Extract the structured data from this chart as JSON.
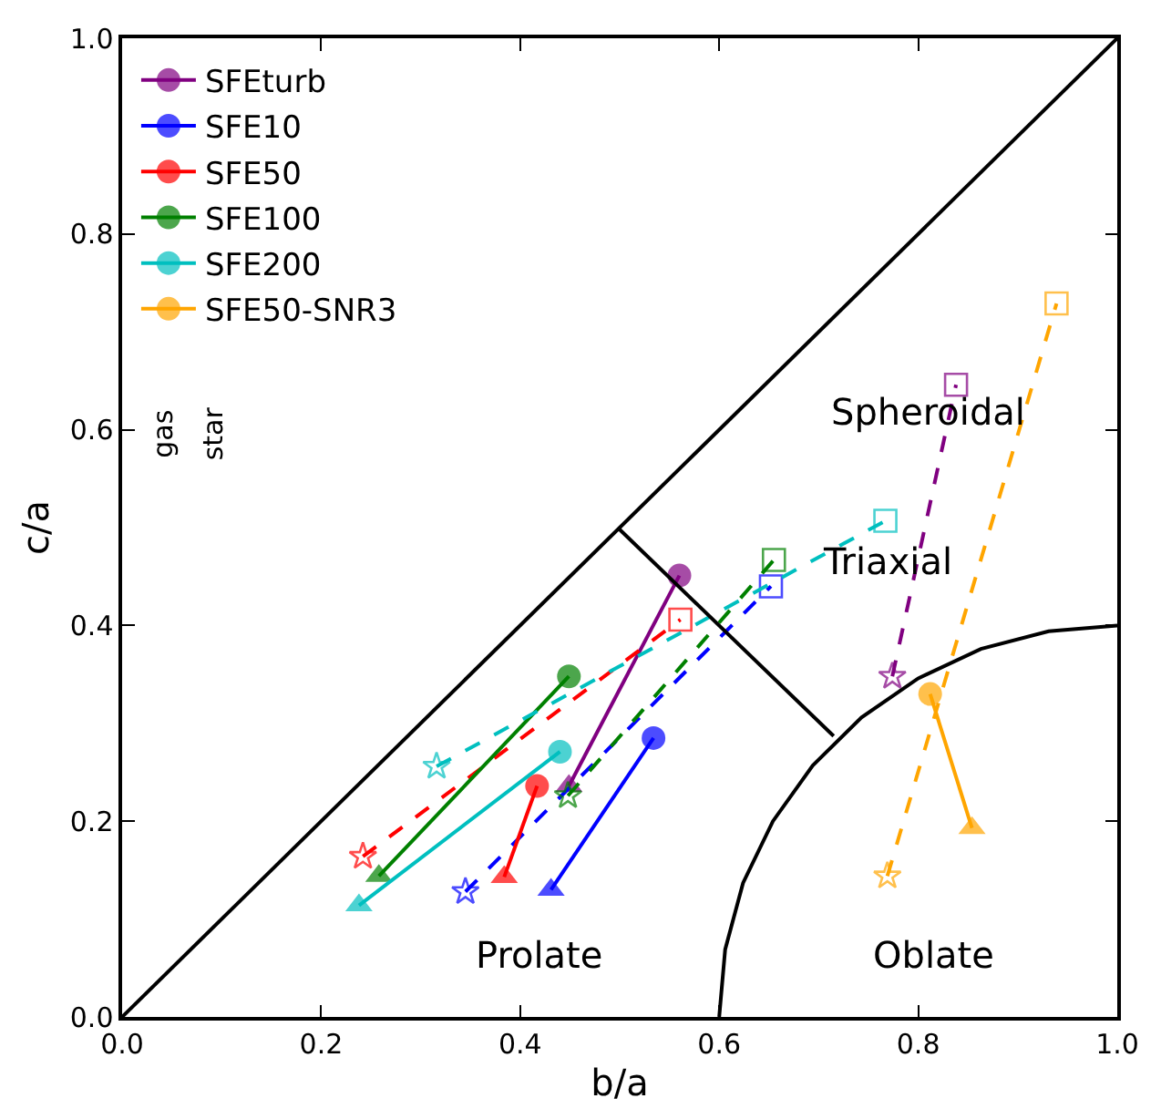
{
  "chart_data": {
    "type": "line",
    "xlabel": "b/a",
    "ylabel": "c/a",
    "xlim": [
      0,
      1
    ],
    "ylim": [
      0,
      1
    ],
    "xticks": [
      {
        "value": 0,
        "label": "0.0"
      },
      {
        "value": 0.2,
        "label": "0.2"
      },
      {
        "value": 0.4,
        "label": "0.4"
      },
      {
        "value": 0.6,
        "label": "0.6"
      },
      {
        "value": 0.8,
        "label": "0.8"
      },
      {
        "value": 1,
        "label": "1.0"
      }
    ],
    "yticks": [
      {
        "value": 0,
        "label": "0.0"
      },
      {
        "value": 0.2,
        "label": "0.2"
      },
      {
        "value": 0.4,
        "label": "0.4"
      },
      {
        "value": 0.6,
        "label": "0.6"
      },
      {
        "value": 0.8,
        "label": "0.8"
      },
      {
        "value": 1,
        "label": "1.0"
      }
    ],
    "grid": false,
    "legend": "top left",
    "series": [
      {
        "name": "SFEturb",
        "color": "#800080",
        "x": [
          0.56,
          0.449
        ],
        "values": [
          0.451,
          0.236
        ],
        "marker": [
          "circle",
          "triangle"
        ],
        "line_style": "solid"
      },
      {
        "color": "#800080",
        "x": [
          0.774,
          0.838
        ],
        "values": [
          0.348,
          0.646
        ],
        "marker": [
          "star",
          "square"
        ],
        "line_style": "dashed"
      },
      {
        "name": "SFE10",
        "color": "#0000ff",
        "x": [
          0.534,
          0.431
        ],
        "values": [
          0.285,
          0.13
        ],
        "marker": [
          "circle",
          "triangle"
        ],
        "line_style": "solid"
      },
      {
        "color": "#0000ff",
        "x": [
          0.345,
          0.652
        ],
        "values": [
          0.128,
          0.44
        ],
        "marker": [
          "star",
          "square"
        ],
        "line_style": "dashed"
      },
      {
        "name": "SFE50",
        "color": "#ff0000",
        "x": [
          0.417,
          0.384
        ],
        "values": [
          0.236,
          0.143
        ],
        "marker": [
          "circle",
          "triangle"
        ],
        "line_style": "solid"
      },
      {
        "color": "#ff0000",
        "x": [
          0.242,
          0.561
        ],
        "values": [
          0.164,
          0.406
        ],
        "marker": [
          "star",
          "square"
        ],
        "line_style": "dashed"
      },
      {
        "name": "SFE100",
        "color": "#008000",
        "x": [
          0.449,
          0.258
        ],
        "values": [
          0.348,
          0.144
        ],
        "marker": [
          "circle",
          "triangle"
        ],
        "line_style": "solid"
      },
      {
        "color": "#008000",
        "x": [
          0.448,
          0.655
        ],
        "values": [
          0.226,
          0.467
        ],
        "marker": [
          "star",
          "square"
        ],
        "line_style": "dashed"
      },
      {
        "name": "SFE200",
        "color": "#00bfbf",
        "x": [
          0.44,
          0.238
        ],
        "values": [
          0.271,
          0.114
        ],
        "marker": [
          "circle",
          "triangle"
        ],
        "line_style": "solid"
      },
      {
        "color": "#00bfbf",
        "x": [
          0.316,
          0.767
        ],
        "values": [
          0.256,
          0.507
        ],
        "marker": [
          "star",
          "square"
        ],
        "line_style": "dashed"
      },
      {
        "name": "SFE50-SNR3",
        "color": "#ffa500",
        "x": [
          0.812,
          0.854
        ],
        "values": [
          0.33,
          0.193
        ],
        "marker": [
          "circle",
          "triangle"
        ],
        "line_style": "solid"
      },
      {
        "color": "#ffa500",
        "x": [
          0.769,
          0.939
        ],
        "values": [
          0.144,
          0.729
        ],
        "marker": [
          "star",
          "square"
        ],
        "line_style": "dashed"
      },
      {
        "color": "#000000",
        "x": [
          0,
          1
        ],
        "values": [
          0,
          1
        ],
        "marker": "none",
        "line_style": "solid"
      },
      {
        "color": "#000000",
        "x": [
          0.498,
          0.715
        ],
        "values": [
          0.5,
          0.287
        ],
        "marker": "none",
        "line_style": "solid"
      },
      {
        "color": "#000000",
        "x": [
          0.6,
          0.606,
          0.624,
          0.654,
          0.694,
          0.743,
          0.8,
          0.863,
          0.931,
          1
        ],
        "values": [
          0,
          0.069,
          0.137,
          0.2,
          0.257,
          0.306,
          0.346,
          0.376,
          0.394,
          0.4
        ],
        "marker": "none",
        "line_style": "solid"
      }
    ],
    "annotations": [
      "Spheroidal",
      "Triaxial",
      "Prolate",
      "Oblate",
      "gas",
      "star"
    ]
  }
}
